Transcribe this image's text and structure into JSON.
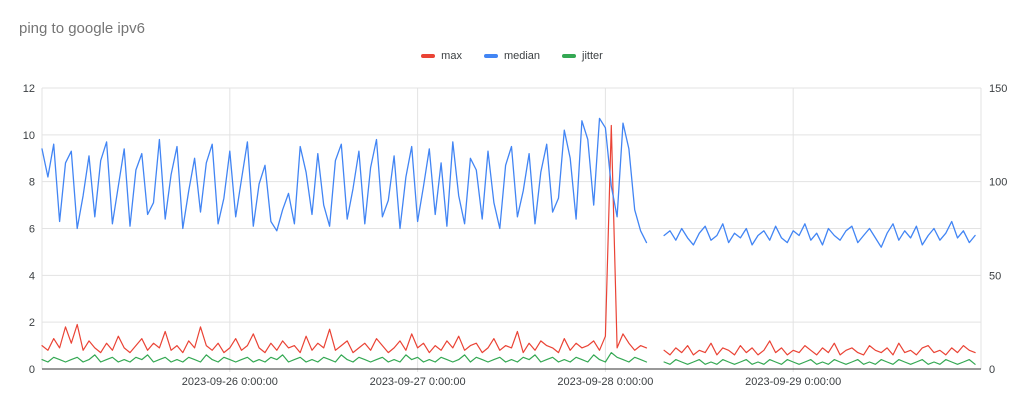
{
  "title": "ping to google ipv6",
  "chart_data": {
    "type": "line",
    "title": "ping to google ipv6",
    "legend_position": "top",
    "grid": true,
    "x": {
      "start": "2023-09-25 0:00:00",
      "step_hours": 0.75,
      "span_hours": 120,
      "tick_hours": [
        24,
        48,
        72,
        96
      ],
      "tick_labels": [
        "2023-09-26 0:00:00",
        "2023-09-27 0:00:00",
        "2023-09-28 0:00:00",
        "2023-09-29 0:00:00"
      ]
    },
    "y_left": {
      "min": 0,
      "max": 12,
      "ticks": [
        0,
        2,
        4,
        6,
        8,
        10,
        12
      ]
    },
    "y_right": {
      "min": 0,
      "max": 150,
      "ticks": [
        0,
        50,
        100,
        150
      ],
      "gridline_step": 25
    },
    "annotations": {
      "data_gap": "no samples between approx 2023-09-28 06:00 and 07:00",
      "max_spike": "max spikes to ~10.4 (~130 on right axis) at approx 2023-09-28 01:00",
      "regime_change": "median drops from noisy 6-10 range to steady ~5.7 after the gap"
    },
    "series": [
      {
        "name": "max",
        "color": "#ea4335",
        "axis": "left",
        "values": [
          1.0,
          0.8,
          1.3,
          0.9,
          1.8,
          1.1,
          1.9,
          0.8,
          1.2,
          0.9,
          0.7,
          1.1,
          0.8,
          1.4,
          0.9,
          0.7,
          1.0,
          1.3,
          0.8,
          1.1,
          0.9,
          1.6,
          0.8,
          1.0,
          0.7,
          1.2,
          0.9,
          1.8,
          1.0,
          0.8,
          1.1,
          0.7,
          0.9,
          1.3,
          0.8,
          1.0,
          1.5,
          0.9,
          0.7,
          1.1,
          0.8,
          1.2,
          0.9,
          1.0,
          0.7,
          1.4,
          0.8,
          1.1,
          0.9,
          1.7,
          0.8,
          1.0,
          1.2,
          0.7,
          0.9,
          1.1,
          0.8,
          1.3,
          1.0,
          0.7,
          0.9,
          1.2,
          0.8,
          1.5,
          0.9,
          1.1,
          0.7,
          1.0,
          0.8,
          1.2,
          0.9,
          1.4,
          0.8,
          1.0,
          1.1,
          0.7,
          0.9,
          1.3,
          0.8,
          1.0,
          0.9,
          1.6,
          0.7,
          1.1,
          0.8,
          1.2,
          1.0,
          0.9,
          0.7,
          1.3,
          0.8,
          1.1,
          0.9,
          1.0,
          1.2,
          0.8,
          1.4,
          10.4,
          0.9,
          1.5,
          1.1,
          0.8,
          1.0,
          0.9,
          null,
          null,
          0.8,
          0.6,
          0.9,
          0.7,
          1.0,
          0.6,
          0.8,
          0.7,
          1.1,
          0.6,
          0.9,
          0.8,
          0.6,
          1.0,
          0.7,
          0.9,
          0.6,
          0.8,
          1.2,
          0.7,
          0.9,
          0.6,
          0.8,
          0.7,
          1.0,
          0.8,
          0.6,
          0.9,
          0.7,
          1.1,
          0.6,
          0.8,
          0.9,
          0.7,
          0.6,
          1.0,
          0.8,
          0.7,
          0.9,
          0.6,
          1.1,
          0.7,
          0.8,
          0.6,
          0.9,
          1.0,
          0.7,
          0.8,
          0.6,
          0.9,
          0.7,
          1.0,
          0.8,
          0.7
        ]
      },
      {
        "name": "median",
        "color": "#4285f4",
        "axis": "left",
        "values": [
          9.4,
          8.2,
          9.6,
          6.3,
          8.8,
          9.3,
          6.0,
          7.4,
          9.1,
          6.5,
          8.9,
          9.7,
          6.2,
          7.8,
          9.4,
          6.1,
          8.5,
          9.2,
          6.6,
          7.1,
          9.8,
          6.4,
          8.3,
          9.5,
          6.0,
          7.6,
          9.0,
          6.7,
          8.8,
          9.6,
          6.2,
          7.3,
          9.3,
          6.5,
          8.1,
          9.7,
          6.1,
          7.9,
          8.7,
          6.3,
          5.9,
          6.8,
          7.5,
          6.2,
          9.5,
          8.4,
          6.6,
          9.2,
          7.0,
          6.1,
          8.9,
          9.6,
          6.4,
          7.7,
          9.3,
          6.2,
          8.6,
          9.8,
          6.5,
          7.2,
          9.1,
          6.0,
          8.2,
          9.5,
          6.3,
          7.8,
          9.4,
          6.6,
          8.8,
          6.1,
          9.7,
          7.4,
          6.2,
          9.0,
          8.5,
          6.4,
          9.3,
          7.1,
          6.0,
          8.7,
          9.5,
          6.5,
          7.6,
          9.2,
          6.2,
          8.4,
          9.6,
          6.7,
          7.3,
          10.2,
          9.0,
          6.4,
          10.6,
          9.8,
          7.0,
          10.7,
          10.3,
          7.8,
          6.5,
          10.5,
          9.4,
          6.8,
          5.9,
          5.4,
          null,
          null,
          5.7,
          5.9,
          5.5,
          6.0,
          5.6,
          5.3,
          5.8,
          6.1,
          5.5,
          5.7,
          6.2,
          5.4,
          5.8,
          5.6,
          6.0,
          5.3,
          5.7,
          5.9,
          5.5,
          6.1,
          5.6,
          5.4,
          5.9,
          5.7,
          6.2,
          5.5,
          5.8,
          5.3,
          6.0,
          5.7,
          5.5,
          5.9,
          6.1,
          5.4,
          5.7,
          6.0,
          5.6,
          5.2,
          5.8,
          6.2,
          5.5,
          5.9,
          5.6,
          6.1,
          5.3,
          5.7,
          6.0,
          5.5,
          5.8,
          6.3,
          5.6,
          5.9,
          5.4,
          5.7
        ]
      },
      {
        "name": "jitter",
        "color": "#34a853",
        "axis": "left",
        "values": [
          0.4,
          0.3,
          0.5,
          0.4,
          0.3,
          0.4,
          0.5,
          0.3,
          0.4,
          0.6,
          0.3,
          0.4,
          0.5,
          0.3,
          0.4,
          0.3,
          0.5,
          0.4,
          0.6,
          0.3,
          0.4,
          0.5,
          0.3,
          0.4,
          0.3,
          0.5,
          0.4,
          0.3,
          0.6,
          0.4,
          0.3,
          0.5,
          0.4,
          0.3,
          0.4,
          0.5,
          0.3,
          0.4,
          0.3,
          0.5,
          0.4,
          0.6,
          0.3,
          0.4,
          0.5,
          0.3,
          0.4,
          0.3,
          0.5,
          0.4,
          0.3,
          0.6,
          0.4,
          0.3,
          0.5,
          0.4,
          0.3,
          0.4,
          0.5,
          0.3,
          0.4,
          0.3,
          0.6,
          0.4,
          0.5,
          0.3,
          0.4,
          0.3,
          0.5,
          0.4,
          0.3,
          0.4,
          0.6,
          0.3,
          0.5,
          0.4,
          0.3,
          0.4,
          0.5,
          0.3,
          0.4,
          0.3,
          0.5,
          0.4,
          0.6,
          0.3,
          0.4,
          0.5,
          0.3,
          0.4,
          0.3,
          0.5,
          0.4,
          0.3,
          0.6,
          0.4,
          0.3,
          0.7,
          0.5,
          0.4,
          0.3,
          0.5,
          0.4,
          0.3,
          null,
          null,
          0.3,
          0.2,
          0.4,
          0.3,
          0.2,
          0.3,
          0.4,
          0.2,
          0.3,
          0.2,
          0.4,
          0.3,
          0.2,
          0.3,
          0.4,
          0.2,
          0.3,
          0.2,
          0.4,
          0.3,
          0.2,
          0.4,
          0.3,
          0.2,
          0.3,
          0.4,
          0.2,
          0.3,
          0.2,
          0.4,
          0.3,
          0.2,
          0.3,
          0.4,
          0.2,
          0.3,
          0.2,
          0.4,
          0.3,
          0.2,
          0.4,
          0.3,
          0.2,
          0.3,
          0.4,
          0.2,
          0.3,
          0.2,
          0.4,
          0.3,
          0.2,
          0.3,
          0.4,
          0.2
        ]
      }
    ],
    "style": {
      "gridline_color": "#e3e3e3",
      "axis_line_color": "#333333",
      "label_color": "#3c4043",
      "title_color": "#757575",
      "background": "#ffffff"
    }
  }
}
